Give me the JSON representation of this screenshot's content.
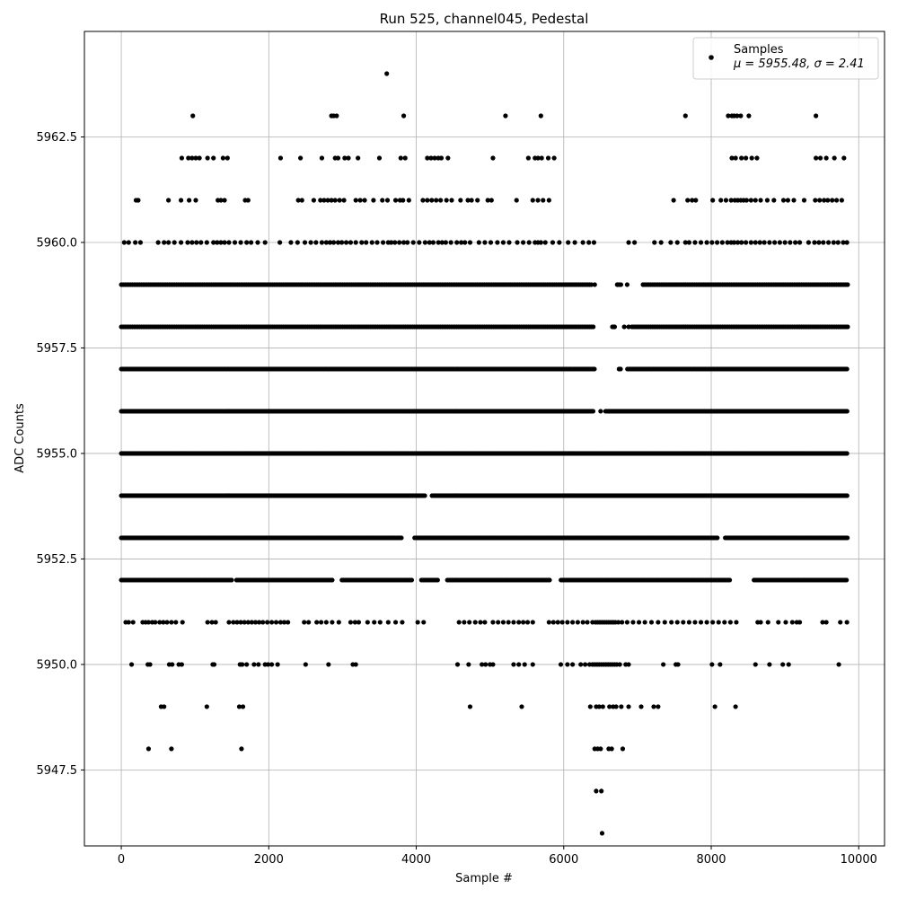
{
  "chart_data": {
    "type": "scatter",
    "title": "Run 525, channel045, Pedestal",
    "xlabel": "Sample #",
    "ylabel": "ADC Counts",
    "xlim": [
      -500,
      10350
    ],
    "ylim": [
      5945.7,
      5965.0
    ],
    "xticks": [
      0,
      2000,
      4000,
      6000,
      8000,
      10000
    ],
    "xtick_labels": [
      "0",
      "2000",
      "4000",
      "6000",
      "8000",
      "10000"
    ],
    "yticks": [
      5947.5,
      5950.0,
      5952.5,
      5955.0,
      5957.5,
      5960.0,
      5962.5
    ],
    "ytick_labels": [
      "5947.5",
      "5950.0",
      "5952.5",
      "5955.0",
      "5957.5",
      "5960.0",
      "5962.5"
    ],
    "grid": true,
    "legend": {
      "position": "top-right",
      "entries": [
        "Samples"
      ],
      "stats_line": "μ = 5955.48, σ = 2.41"
    },
    "series": [
      {
        "name": "Samples",
        "color": "#000000",
        "x_range": [
          0,
          9850
        ],
        "levels": [
          {
            "y": 5964,
            "x": [
              3600
            ]
          },
          {
            "y": 5963,
            "x": [
              970,
              2850,
              2880,
              2920,
              3830,
              5210,
              5690,
              7650,
              8230,
              8280,
              8310,
              8350,
              8400,
              8510,
              9420
            ]
          },
          {
            "y": 5962,
            "x": [
              820,
              910,
              960,
              1010,
              1060,
              1170,
              1250,
              1380,
              1440,
              2160,
              2430,
              2720,
              2900,
              2940,
              3030,
              3080,
              3210,
              3500,
              3790,
              3850,
              4150,
              4200,
              4250,
              4300,
              4340,
              4430,
              5040,
              5520,
              5610,
              5650,
              5700,
              5790,
              5870,
              8280,
              8330,
              8410,
              8470,
              8550,
              8620,
              9420,
              9480,
              9560,
              9670,
              9800
            ]
          },
          {
            "y": 5961,
            "x": [
              200,
              230,
              640,
              810,
              920,
              1010,
              1310,
              1350,
              1400,
              1680,
              1720,
              2400,
              2450,
              2610,
              2700,
              2750,
              2800,
              2850,
              2900,
              2960,
              3020,
              3180,
              3240,
              3300,
              3420,
              3540,
              3610,
              3720,
              3780,
              3820,
              3900,
              4090,
              4150,
              4210,
              4270,
              4330,
              4410,
              4480,
              4600,
              4700,
              4750,
              4830,
              4970,
              5020,
              5360,
              5580,
              5650,
              5720,
              5800,
              7490,
              7680,
              7740,
              7790,
              8020,
              8130,
              8200,
              8270,
              8320,
              8360,
              8400,
              8440,
              8480,
              8540,
              8600,
              8670,
              8760,
              8850,
              8980,
              9040,
              9120,
              9260,
              9410,
              9470,
              9530,
              9580,
              9640,
              9700,
              9770
            ]
          },
          {
            "y": 5960,
            "x": [
              40,
              100,
              190,
              260,
              500,
              580,
              640,
              720,
              810,
              900,
              960,
              1020,
              1080,
              1160,
              1250,
              1300,
              1350,
              1400,
              1460,
              1540,
              1620,
              1700,
              1760,
              1850,
              1950,
              2150,
              2300,
              2390,
              2490,
              2570,
              2640,
              2720,
              2780,
              2830,
              2880,
              2940,
              2990,
              3050,
              3110,
              3180,
              3260,
              3320,
              3400,
              3470,
              3550,
              3620,
              3660,
              3710,
              3770,
              3830,
              3880,
              3960,
              4040,
              4120,
              4180,
              4230,
              4300,
              4350,
              4400,
              4470,
              4550,
              4610,
              4660,
              4730,
              4850,
              4930,
              5010,
              5100,
              5180,
              5260,
              5370,
              5450,
              5530,
              5610,
              5650,
              5690,
              5750,
              5850,
              5940,
              6060,
              6150,
              6260,
              6340,
              6410,
              6880,
              6960,
              7230,
              7320,
              7450,
              7540,
              7650,
              7700,
              7780,
              7860,
              7940,
              8010,
              8080,
              8150,
              8220,
              8270,
              8310,
              8360,
              8410,
              8470,
              8540,
              8600,
              8660,
              8720,
              8790,
              8860,
              8930,
              9000,
              9070,
              9140,
              9200,
              9320,
              9400,
              9460,
              9520,
              9590,
              9660,
              9720,
              9790,
              9840
            ]
          },
          {
            "y": 5959,
            "step": 25,
            "from": 0,
            "to": 9850,
            "gaps": [
              [
                6400,
                6720
              ],
              [
                6800,
                7050
              ]
            ],
            "extra": [
              6420,
              6730,
              6860,
              7080
            ]
          },
          {
            "y": 5958,
            "step": 25,
            "from": 0,
            "to": 9850,
            "gaps": [
              [
                6410,
                6660
              ],
              [
                6700,
                6900
              ]
            ],
            "extra": [
              6660,
              6690,
              6820,
              6880
            ]
          },
          {
            "y": 5957,
            "step": 16,
            "from": 0,
            "to": 9850,
            "gaps": [
              [
                6420,
                6740
              ],
              [
                6780,
                6860
              ]
            ],
            "extra": [
              6750,
              6770
            ]
          },
          {
            "y": 5956,
            "step": 14,
            "from": 0,
            "to": 9850,
            "gaps": [
              [
                6410,
                6560
              ]
            ],
            "extra": [
              6500
            ]
          },
          {
            "y": 5955,
            "step": 12,
            "from": 0,
            "to": 9850,
            "gaps": []
          },
          {
            "y": 5954,
            "step": 14,
            "from": 0,
            "to": 9850,
            "gaps": [
              [
                4130,
                4210
              ]
            ]
          },
          {
            "y": 5953,
            "step": 18,
            "from": 0,
            "to": 9850,
            "gaps": [
              [
                3810,
                3960
              ],
              [
                8100,
                8180
              ]
            ]
          },
          {
            "y": 5952,
            "step": 22,
            "from": 0,
            "to": 9850,
            "gaps": [
              [
                1500,
                1560
              ],
              [
                2870,
                2980
              ],
              [
                3960,
                4060
              ],
              [
                4310,
                4400
              ],
              [
                5830,
                5960
              ],
              [
                8270,
                8560
              ]
            ]
          },
          {
            "y": 5951,
            "x": [
              60,
              100,
              160,
              290,
              330,
              370,
              420,
              460,
              520,
              570,
              620,
              680,
              740,
              830,
              1170,
              1230,
              1280,
              1460,
              1520,
              1570,
              1620,
              1670,
              1720,
              1770,
              1820,
              1870,
              1920,
              1980,
              2040,
              2100,
              2160,
              2210,
              2260,
              2480,
              2540,
              2650,
              2710,
              2780,
              2860,
              2950,
              3110,
              3170,
              3220,
              3340,
              3430,
              3510,
              3620,
              3720,
              3810,
              4020,
              4100,
              4580,
              4650,
              4720,
              4800,
              4870,
              4930,
              5040,
              5110,
              5180,
              5250,
              5320,
              5390,
              5450,
              5510,
              5580,
              5800,
              5860,
              5920,
              5980,
              6050,
              6120,
              6190,
              6260,
              6320,
              6390,
              6430,
              6460,
              6490,
              6520,
              6550,
              6580,
              6610,
              6640,
              6670,
              6700,
              6740,
              6790,
              6860,
              6940,
              7020,
              7100,
              7190,
              7280,
              7370,
              7460,
              7540,
              7620,
              7700,
              7780,
              7860,
              7940,
              8020,
              8100,
              8180,
              8260,
              8340,
              8630,
              8670,
              8770,
              8910,
              9010,
              9100,
              9160,
              9200,
              9510,
              9560,
              9750,
              9840
            ]
          },
          {
            "y": 5950,
            "x": [
              140,
              360,
              390,
              650,
              690,
              780,
              820,
              1240,
              1260,
              1610,
              1640,
              1700,
              1800,
              1860,
              1950,
              1990,
              2040,
              2120,
              2500,
              2810,
              3140,
              3180,
              4560,
              4710,
              4890,
              4940,
              5000,
              5040,
              5320,
              5390,
              5470,
              5580,
              5960,
              6050,
              6120,
              6230,
              6290,
              6350,
              6390,
              6420,
              6450,
              6480,
              6510,
              6540,
              6570,
              6600,
              6630,
              6660,
              6690,
              6720,
              6760,
              6840,
              6880,
              7350,
              7520,
              7550,
              8010,
              8120,
              8600,
              8790,
              8970,
              9050,
              9730
            ]
          },
          {
            "y": 5949,
            "x": [
              540,
              580,
              1160,
              1600,
              1650,
              4730,
              5430,
              6360,
              6440,
              6480,
              6530,
              6620,
              6670,
              6710,
              6780,
              6880,
              7050,
              7220,
              7280,
              8050,
              8330
            ]
          },
          {
            "y": 5948,
            "x": [
              370,
              680,
              1630,
              6420,
              6460,
              6500,
              6610,
              6650,
              6800
            ]
          },
          {
            "y": 5947,
            "x": [
              6440,
              6510
            ]
          },
          {
            "y": 5946,
            "x": [
              6520
            ]
          }
        ]
      }
    ]
  }
}
